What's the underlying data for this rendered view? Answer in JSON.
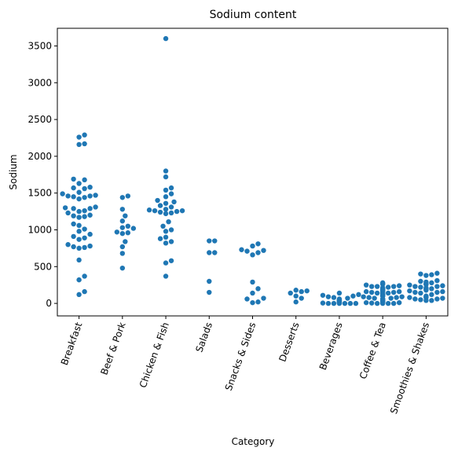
{
  "chart_data": {
    "type": "scatter",
    "subtype": "swarm",
    "title": "Sodium content",
    "xlabel": "Category",
    "ylabel": "Sodium",
    "ylim": [
      -170,
      3740
    ],
    "yticks": [
      0,
      500,
      1000,
      1500,
      2000,
      2500,
      3000,
      3500
    ],
    "grid": false,
    "color": "#1f77b4",
    "categories": [
      "Breakfast",
      "Beef & Pork",
      "Chicken & Fish",
      "Salads",
      "Snacks & Sides",
      "Desserts",
      "Beverages",
      "Coffee & Tea",
      "Smoothies & Shakes"
    ],
    "series": [
      {
        "values": [
          [
            1300,
            1290,
            1250,
            1200,
            1180,
            1170,
            1260,
            1290,
            1310,
            1230,
            1190,
            1460,
            1450,
            1470,
            1420,
            1490,
            1510,
            1460,
            1440,
            1580,
            1570,
            1630,
            1690,
            1680,
            1560,
            2290,
            2260,
            2170,
            2160,
            1080,
            1060,
            1010,
            980,
            940,
            910,
            890,
            870,
            800,
            780,
            770,
            760,
            750,
            590,
            370,
            320,
            160,
            120
          ],
          [
            1460,
            1440,
            1280,
            1190,
            1120,
            1050,
            1030,
            1020,
            970,
            960,
            950,
            840,
            770,
            680,
            480
          ],
          [
            3600,
            1800,
            1720,
            1570,
            1540,
            1490,
            1450,
            1400,
            1380,
            1360,
            1330,
            1310,
            1280,
            1270,
            1260,
            1260,
            1250,
            1240,
            1230,
            1220,
            1110,
            1050,
            1000,
            980,
            900,
            880,
            840,
            820,
            580,
            550,
            370
          ],
          [
            850,
            850,
            690,
            690,
            300,
            150
          ],
          [
            810,
            780,
            730,
            720,
            710,
            690,
            660,
            290,
            200,
            140,
            70,
            60,
            20,
            10
          ],
          [
            180,
            170,
            160,
            140,
            100,
            70,
            20
          ],
          [
            140,
            120,
            110,
            100,
            90,
            80,
            70,
            60,
            50,
            40,
            30,
            20,
            10,
            5,
            0,
            0,
            0,
            0,
            0,
            0,
            10,
            20,
            30,
            40,
            50
          ],
          [
            280,
            270,
            260,
            250,
            240,
            230,
            230,
            220,
            210,
            200,
            190,
            190,
            180,
            170,
            160,
            150,
            150,
            140,
            130,
            120,
            110,
            110,
            100,
            90,
            80,
            70,
            70,
            60,
            50,
            40,
            30,
            30,
            20,
            15,
            10,
            5,
            0,
            0,
            200,
            180,
            160,
            140,
            120,
            100,
            80,
            60,
            40,
            20,
            10,
            0,
            230,
            210,
            170,
            150,
            130,
            90,
            50,
            0
          ],
          [
            410,
            400,
            390,
            380,
            310,
            300,
            290,
            280,
            270,
            260,
            260,
            250,
            240,
            230,
            220,
            210,
            200,
            190,
            180,
            170,
            160,
            150,
            140,
            120,
            100,
            90,
            80,
            70,
            60,
            50,
            40,
            40,
            60,
            80,
            260,
            230,
            200,
            150
          ]
        ]
      }
    ]
  }
}
